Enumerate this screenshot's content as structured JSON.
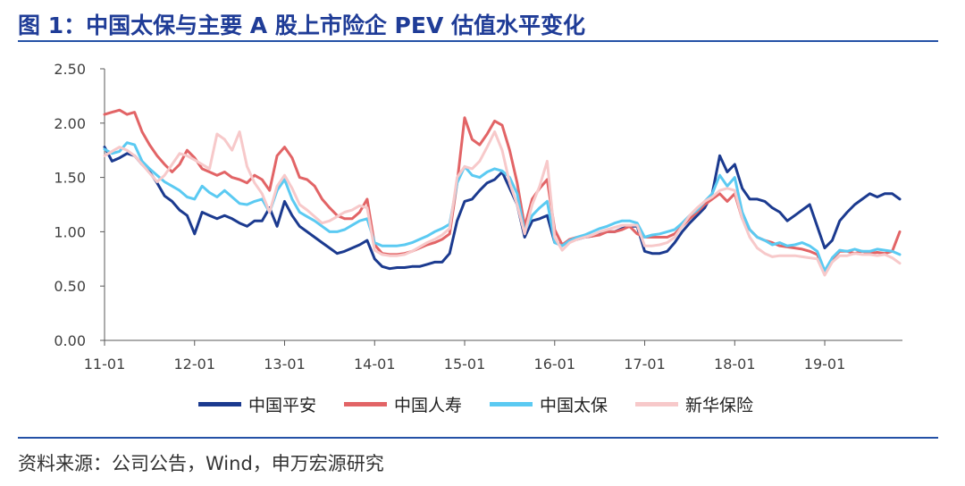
{
  "source": "资料来源：公司公告，Wind，申万宏源研究",
  "chart_data": {
    "type": "line",
    "title": "图 1：中国太保与主要 A 股上市险企 PEV 估值水平变化",
    "ylim": [
      0,
      2.5
    ],
    "yticks": [
      "0.00",
      "0.50",
      "1.00",
      "1.50",
      "2.00",
      "2.50"
    ],
    "xlim": [
      "2011-01",
      "2019-11"
    ],
    "xticks": [
      "11-01",
      "12-01",
      "13-01",
      "14-01",
      "15-01",
      "16-01",
      "17-01",
      "18-01",
      "19-01"
    ],
    "grid": false,
    "legend": "bottom",
    "x": [
      "2011-01",
      "2011-02",
      "2011-03",
      "2011-04",
      "2011-05",
      "2011-06",
      "2011-07",
      "2011-08",
      "2011-09",
      "2011-10",
      "2011-11",
      "2011-12",
      "2012-01",
      "2012-02",
      "2012-03",
      "2012-04",
      "2012-05",
      "2012-06",
      "2012-07",
      "2012-08",
      "2012-09",
      "2012-10",
      "2012-11",
      "2012-12",
      "2013-01",
      "2013-02",
      "2013-03",
      "2013-04",
      "2013-05",
      "2013-06",
      "2013-07",
      "2013-08",
      "2013-09",
      "2013-10",
      "2013-11",
      "2013-12",
      "2014-01",
      "2014-02",
      "2014-03",
      "2014-04",
      "2014-05",
      "2014-06",
      "2014-07",
      "2014-08",
      "2014-09",
      "2014-10",
      "2014-11",
      "2014-12",
      "2015-01",
      "2015-02",
      "2015-03",
      "2015-04",
      "2015-05",
      "2015-06",
      "2015-07",
      "2015-08",
      "2015-09",
      "2015-10",
      "2015-11",
      "2015-12",
      "2016-01",
      "2016-02",
      "2016-03",
      "2016-04",
      "2016-05",
      "2016-06",
      "2016-07",
      "2016-08",
      "2016-09",
      "2016-10",
      "2016-11",
      "2016-12",
      "2017-01",
      "2017-02",
      "2017-03",
      "2017-04",
      "2017-05",
      "2017-06",
      "2017-07",
      "2017-08",
      "2017-09",
      "2017-10",
      "2017-11",
      "2017-12",
      "2018-01",
      "2018-02",
      "2018-03",
      "2018-04",
      "2018-05",
      "2018-06",
      "2018-07",
      "2018-08",
      "2018-09",
      "2018-10",
      "2018-11",
      "2018-12",
      "2019-01",
      "2019-02",
      "2019-03",
      "2019-04",
      "2019-05",
      "2019-06",
      "2019-07",
      "2019-08",
      "2019-09",
      "2019-10",
      "2019-11"
    ],
    "series": [
      {
        "name": "中国平安",
        "color": "#1b3a8f",
        "values": [
          1.78,
          1.65,
          1.68,
          1.72,
          1.7,
          1.62,
          1.55,
          1.45,
          1.33,
          1.28,
          1.2,
          1.15,
          0.98,
          1.18,
          1.15,
          1.12,
          1.15,
          1.12,
          1.08,
          1.05,
          1.1,
          1.1,
          1.22,
          1.05,
          1.28,
          1.15,
          1.05,
          1.0,
          0.95,
          0.9,
          0.85,
          0.8,
          0.82,
          0.85,
          0.88,
          0.92,
          0.75,
          0.68,
          0.66,
          0.67,
          0.67,
          0.68,
          0.68,
          0.7,
          0.72,
          0.72,
          0.8,
          1.1,
          1.28,
          1.3,
          1.38,
          1.45,
          1.48,
          1.55,
          1.4,
          1.25,
          0.95,
          1.1,
          1.12,
          1.15,
          0.9,
          0.88,
          0.92,
          0.93,
          0.95,
          0.96,
          0.98,
          1.0,
          1.0,
          1.03,
          1.05,
          1.05,
          0.82,
          0.8,
          0.8,
          0.82,
          0.9,
          1.0,
          1.08,
          1.15,
          1.22,
          1.35,
          1.7,
          1.55,
          1.62,
          1.4,
          1.3,
          1.3,
          1.28,
          1.22,
          1.18,
          1.1,
          1.15,
          1.2,
          1.25,
          1.05,
          0.85,
          0.92,
          1.1,
          1.18,
          1.25,
          1.3,
          1.35,
          1.32,
          1.35,
          1.35,
          1.3
        ]
      },
      {
        "name": "中国人寿",
        "color": "#e26466",
        "values": [
          2.08,
          2.1,
          2.12,
          2.08,
          2.1,
          1.92,
          1.8,
          1.7,
          1.62,
          1.55,
          1.62,
          1.75,
          1.68,
          1.58,
          1.55,
          1.52,
          1.55,
          1.5,
          1.48,
          1.45,
          1.52,
          1.48,
          1.38,
          1.7,
          1.78,
          1.68,
          1.5,
          1.48,
          1.42,
          1.3,
          1.22,
          1.15,
          1.12,
          1.12,
          1.18,
          1.3,
          0.88,
          0.8,
          0.79,
          0.79,
          0.8,
          0.82,
          0.85,
          0.88,
          0.9,
          0.93,
          0.98,
          1.45,
          2.05,
          1.85,
          1.8,
          1.9,
          2.02,
          1.98,
          1.75,
          1.45,
          1.05,
          1.3,
          1.4,
          1.48,
          1.02,
          0.88,
          0.93,
          0.95,
          0.95,
          0.96,
          0.97,
          1.0,
          1.0,
          1.02,
          1.05,
          0.98,
          0.95,
          0.95,
          0.95,
          0.95,
          0.98,
          1.05,
          1.12,
          1.18,
          1.25,
          1.3,
          1.35,
          1.28,
          1.35,
          1.12,
          1.02,
          0.95,
          0.92,
          0.9,
          0.87,
          0.86,
          0.85,
          0.84,
          0.82,
          0.79,
          0.64,
          0.75,
          0.82,
          0.82,
          0.8,
          0.82,
          0.8,
          0.81,
          0.8,
          0.82,
          1.0
        ]
      },
      {
        "name": "中国太保",
        "color": "#5bcaf2",
        "values": [
          1.76,
          1.72,
          1.74,
          1.82,
          1.8,
          1.65,
          1.58,
          1.52,
          1.46,
          1.42,
          1.38,
          1.32,
          1.3,
          1.42,
          1.36,
          1.32,
          1.38,
          1.32,
          1.26,
          1.25,
          1.28,
          1.3,
          1.18,
          1.38,
          1.48,
          1.3,
          1.18,
          1.14,
          1.1,
          1.05,
          1.0,
          1.0,
          1.02,
          1.06,
          1.1,
          1.12,
          0.9,
          0.87,
          0.87,
          0.87,
          0.88,
          0.9,
          0.93,
          0.96,
          1.0,
          1.03,
          1.07,
          1.45,
          1.6,
          1.52,
          1.5,
          1.55,
          1.58,
          1.56,
          1.5,
          1.35,
          1.0,
          1.15,
          1.22,
          1.28,
          0.9,
          0.87,
          0.92,
          0.95,
          0.97,
          1.0,
          1.03,
          1.05,
          1.08,
          1.1,
          1.1,
          1.08,
          0.95,
          0.97,
          0.98,
          1.0,
          1.02,
          1.08,
          1.15,
          1.2,
          1.28,
          1.35,
          1.52,
          1.42,
          1.5,
          1.18,
          1.02,
          0.95,
          0.92,
          0.88,
          0.9,
          0.87,
          0.88,
          0.9,
          0.87,
          0.82,
          0.64,
          0.76,
          0.83,
          0.82,
          0.84,
          0.82,
          0.82,
          0.84,
          0.83,
          0.82,
          0.79
        ]
      },
      {
        "name": "新华保险",
        "color": "#f7c9ca",
        "values": [
          1.7,
          1.74,
          1.78,
          1.75,
          1.7,
          1.62,
          1.54,
          1.46,
          1.52,
          1.62,
          1.72,
          1.7,
          1.66,
          1.62,
          1.58,
          1.9,
          1.85,
          1.75,
          1.92,
          1.6,
          1.45,
          1.35,
          1.18,
          1.42,
          1.52,
          1.4,
          1.25,
          1.2,
          1.14,
          1.08,
          1.1,
          1.14,
          1.18,
          1.2,
          1.24,
          1.22,
          0.83,
          0.79,
          0.78,
          0.78,
          0.79,
          0.82,
          0.86,
          0.9,
          0.93,
          0.97,
          1.03,
          1.5,
          1.6,
          1.58,
          1.65,
          1.78,
          1.92,
          1.75,
          1.45,
          1.25,
          0.98,
          1.25,
          1.42,
          1.65,
          0.95,
          0.83,
          0.9,
          0.93,
          0.95,
          0.97,
          1.0,
          1.02,
          1.04,
          1.06,
          1.06,
          1.06,
          0.87,
          0.87,
          0.88,
          0.9,
          0.95,
          1.05,
          1.15,
          1.22,
          1.28,
          1.32,
          1.38,
          1.4,
          1.38,
          1.12,
          0.95,
          0.85,
          0.8,
          0.77,
          0.78,
          0.78,
          0.78,
          0.77,
          0.76,
          0.75,
          0.6,
          0.72,
          0.78,
          0.78,
          0.8,
          0.79,
          0.79,
          0.78,
          0.79,
          0.76,
          0.71
        ]
      }
    ]
  }
}
